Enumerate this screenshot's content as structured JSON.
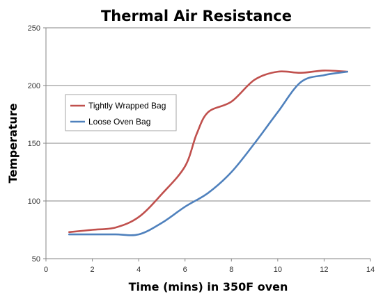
{
  "chart_data": {
    "type": "line",
    "title": "Thermal Air Resistance",
    "xlabel": "Time (mins) in 350F oven",
    "ylabel": "Temperature",
    "xlim": [
      0,
      14
    ],
    "ylim": [
      50,
      250
    ],
    "xticks": [
      0,
      2,
      4,
      6,
      8,
      10,
      12,
      14
    ],
    "yticks": [
      50,
      100,
      150,
      200,
      250
    ],
    "grid": "horizontal",
    "legend_position": "upper-left",
    "series": [
      {
        "name": "Tightly Wrapped Bag",
        "color": "#c0504d",
        "x": [
          1,
          2,
          3,
          4,
          5,
          6,
          6.5,
          7,
          8,
          9,
          10,
          11,
          12,
          13
        ],
        "y": [
          73,
          75,
          77,
          86,
          106,
          130,
          158,
          177,
          186,
          205,
          212,
          211,
          213,
          212
        ]
      },
      {
        "name": "Loose Oven Bag",
        "color": "#4f81bd",
        "x": [
          1,
          2,
          3,
          4,
          5,
          6,
          7,
          8,
          9,
          10,
          11,
          12,
          13
        ],
        "y": [
          71,
          71,
          71,
          71,
          81,
          95,
          107,
          125,
          150,
          177,
          203,
          209,
          212
        ]
      }
    ]
  }
}
